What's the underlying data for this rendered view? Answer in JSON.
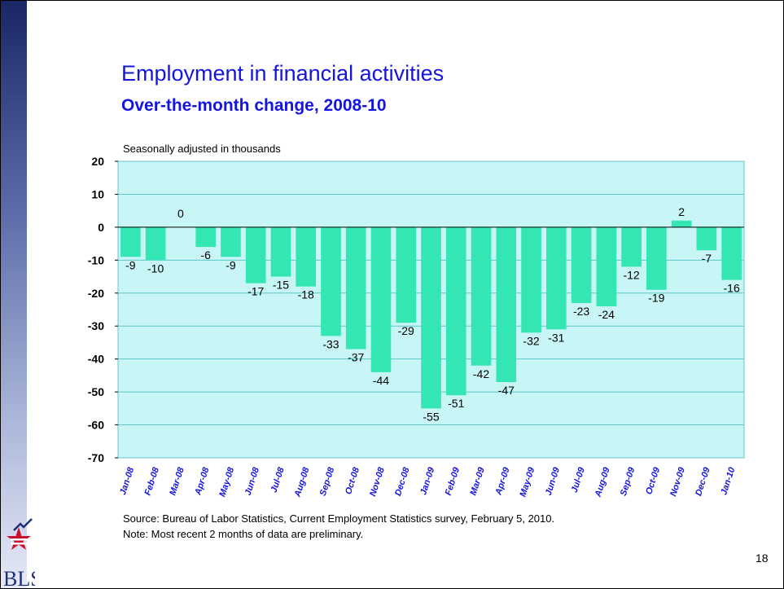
{
  "slide": {
    "title": "Employment in financial activities",
    "subtitle": "Over-the-month change, 2008-10",
    "units_note": "Seasonally adjusted in thousands",
    "source": "Source:  Bureau of Labor Statistics, Current Employment Statistics survey, February 5, 2010.",
    "note": "Note:  Most recent 2 months of data are preliminary.",
    "page_number": "18",
    "logo_text": "BLS"
  },
  "chart_data": {
    "type": "bar",
    "categories": [
      "Jan-08",
      "Feb-08",
      "Mar-08",
      "Apr-08",
      "May-08",
      "Jun-08",
      "Jul-08",
      "Aug-08",
      "Sep-08",
      "Oct-08",
      "Nov-08",
      "Dec-08",
      "Jan-09",
      "Feb-09",
      "Mar-09",
      "Apr-09",
      "May-09",
      "Jun-09",
      "Jul-09",
      "Aug-09",
      "Sep-09",
      "Oct-09",
      "Nov-09",
      "Dec-09",
      "Jan-10"
    ],
    "values": [
      -9,
      -10,
      0,
      -6,
      -9,
      -17,
      -15,
      -18,
      -33,
      -37,
      -44,
      -29,
      -55,
      -51,
      -42,
      -47,
      -32,
      -31,
      -23,
      -24,
      -12,
      -19,
      2,
      -7,
      -16
    ],
    "data_labels": [
      "-9",
      "-10",
      "0",
      "-6",
      "-9",
      "-17",
      "-15",
      "-18",
      "-33",
      "-37",
      "-44",
      "-29",
      "-55",
      "-51",
      "-42",
      "-47",
      "-32",
      "-31",
      "-23",
      "-24",
      "-12",
      "-19",
      "2",
      "-7",
      "-16"
    ],
    "ylim": [
      -70,
      20
    ],
    "yticks": [
      20,
      10,
      0,
      -10,
      -20,
      -30,
      -40,
      -50,
      -60,
      -70
    ],
    "grid": true,
    "title": "Employment in financial activities",
    "subtitle": "Over-the-month change, 2008-10",
    "xlabel": "",
    "ylabel": "Seasonally adjusted in thousands",
    "colors": {
      "bar": "#33e6b3",
      "plot_bg": "#c8f5f5",
      "plot_border": "#5cc8c8",
      "grid": "#5cc8c8",
      "tick_label": "#1515e0"
    }
  }
}
